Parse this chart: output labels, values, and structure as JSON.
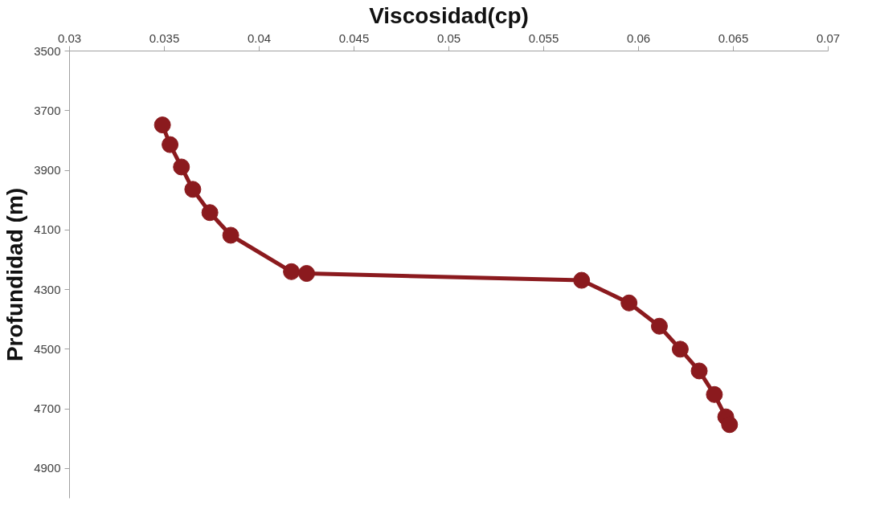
{
  "chart_data": {
    "type": "line",
    "xlabel": "Viscosidad(cp)",
    "ylabel": "Profundidad (m)",
    "xlim": [
      0.03,
      0.07
    ],
    "xticks": [
      0.03,
      0.035,
      0.04,
      0.045,
      0.05,
      0.055,
      0.06,
      0.065,
      0.07
    ],
    "ylim": [
      5000,
      3500
    ],
    "yticks": [
      3500,
      3700,
      3900,
      4100,
      4300,
      4500,
      4700,
      4900
    ],
    "grid": false,
    "marker": "circle",
    "line_style": "solid",
    "series": [
      {
        "color": "#8b1a1e",
        "x": [
          0.0349,
          0.0353,
          0.0359,
          0.0365,
          0.0374,
          0.0385,
          0.0417,
          0.0425,
          0.057,
          0.0595,
          0.0611,
          0.0622,
          0.0632,
          0.064,
          0.0646,
          0.0648
        ],
        "values": [
          3748,
          3814,
          3889,
          3964,
          4042,
          4118,
          4240,
          4246,
          4269,
          4345,
          4423,
          4500,
          4573,
          4652,
          4727,
          4753
        ]
      }
    ]
  }
}
